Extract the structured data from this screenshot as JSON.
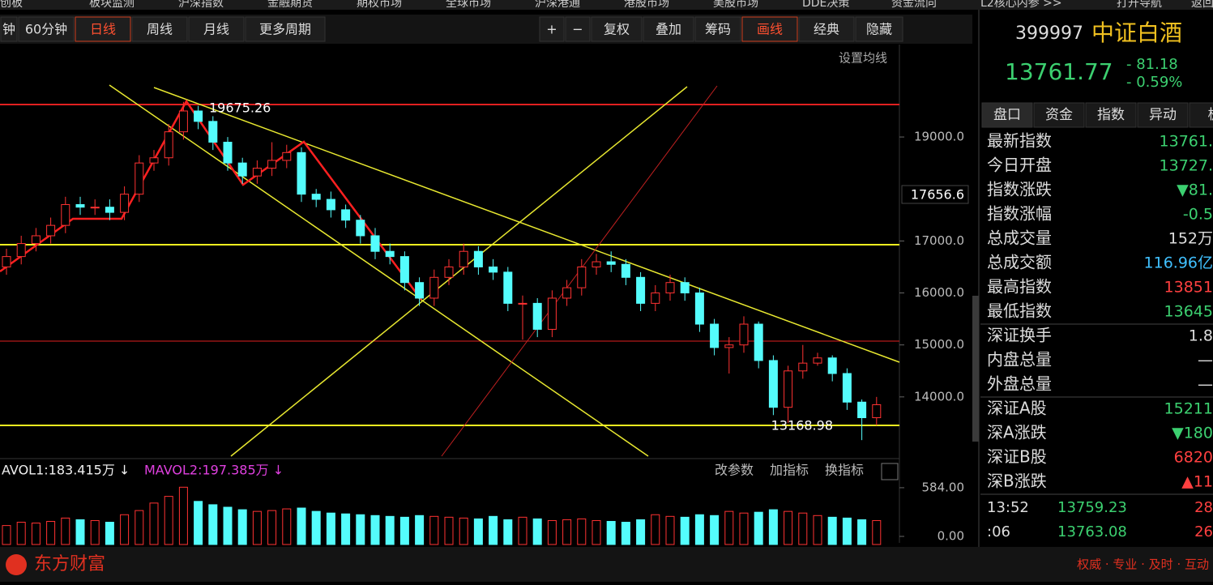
{
  "nav": {
    "items": [
      "创板",
      "板块监测",
      "沪深指数",
      "金融期货",
      "期权市场",
      "全球市场",
      "沪深港通",
      "港股市场",
      "美股市场",
      "DDE决策",
      "资金流向",
      "L2核心内参 >>"
    ],
    "right": [
      "打开导航",
      "返回"
    ]
  },
  "toolbar": {
    "periods": [
      "钟",
      "60分钟",
      "日线",
      "周线",
      "月线",
      "更多周期"
    ],
    "tools": [
      "+",
      "−",
      "复权",
      "叠加",
      "筹码",
      "画线",
      "经典",
      "隐藏"
    ]
  },
  "chart_data": {
    "type": "candlestick",
    "ma_setting": "设置均线",
    "cursor_label": "17656.6",
    "high_label": "19675.26",
    "low_label": "13168.98",
    "up_color": "#ff3232",
    "down_color": "#54fcfc",
    "ylim": [
      12860,
      20700
    ],
    "yticks": [
      {
        "value": 14000,
        "label": "14000.0"
      },
      {
        "value": 15000,
        "label": "15000.0"
      },
      {
        "value": 16000,
        "label": "16000.0"
      },
      {
        "value": 17000,
        "label": "17000.0"
      },
      {
        "value": 19000,
        "label": "19000.0"
      }
    ],
    "open": [
      16500,
      16700,
      16950,
      17100,
      17300,
      17700,
      17650,
      17650,
      17550,
      17900,
      18500,
      18600,
      19100,
      19500,
      19300,
      18900,
      18500,
      18250,
      18400,
      18550,
      18700,
      17900,
      17800,
      17600,
      17400,
      17100,
      16800,
      16700,
      16200,
      15900,
      16300,
      16500,
      16800,
      16500,
      16400,
      15800,
      15800,
      15300,
      15900,
      16100,
      16500,
      16600,
      16550,
      16300,
      15800,
      16000,
      16200,
      16000,
      15400,
      14950,
      15000,
      15400,
      14700,
      13800,
      14500,
      14650,
      14750,
      14450,
      13900,
      13600
    ],
    "high": [
      16850,
      17100,
      17250,
      17450,
      17850,
      17850,
      17800,
      17800,
      18050,
      18650,
      18750,
      19250,
      19675.26,
      19600,
      19400,
      19000,
      18600,
      18550,
      18900,
      18850,
      18800,
      18000,
      17950,
      17700,
      17500,
      17250,
      16950,
      16800,
      16300,
      16450,
      16650,
      16950,
      16900,
      16650,
      16500,
      15950,
      15900,
      16050,
      16250,
      16650,
      16750,
      16800,
      16650,
      16400,
      16150,
      16350,
      16300,
      16100,
      15500,
      15150,
      15550,
      15450,
      14800,
      14600,
      15000,
      14850,
      14800,
      14550,
      13950,
      14000
    ],
    "low": [
      16350,
      16550,
      16800,
      16950,
      17150,
      17500,
      17500,
      17400,
      17400,
      17750,
      18350,
      18450,
      18950,
      19150,
      18750,
      18350,
      18100,
      18100,
      18250,
      18400,
      17750,
      17650,
      17450,
      17250,
      16950,
      16650,
      16550,
      16050,
      15750,
      15750,
      16150,
      16350,
      16350,
      16250,
      15650,
      15100,
      15150,
      15150,
      15750,
      15950,
      16350,
      16400,
      16150,
      15650,
      15650,
      15850,
      15850,
      15250,
      14800,
      14450,
      14850,
      14550,
      13650,
      13500,
      14350,
      14600,
      14300,
      13750,
      13168.98,
      13450
    ],
    "close": [
      16700,
      16950,
      17100,
      17300,
      17700,
      17650,
      17650,
      17550,
      17900,
      18500,
      18600,
      19100,
      19500,
      19300,
      18900,
      18500,
      18250,
      18400,
      18550,
      18700,
      17900,
      17800,
      17600,
      17400,
      17100,
      16800,
      16700,
      16200,
      15900,
      16300,
      16500,
      16800,
      16500,
      16400,
      15800,
      15800,
      15300,
      15900,
      16100,
      16500,
      16600,
      16550,
      16300,
      15800,
      16000,
      16200,
      16000,
      15400,
      14950,
      15000,
      15400,
      14700,
      13800,
      14500,
      14650,
      14750,
      14450,
      13900,
      13600,
      13850
    ],
    "volume": {
      "mavol1": "AVOL1:183.415万 ↓",
      "mavol2": "MAVOL2:197.385万 ↓",
      "buttons": [
        "改参数",
        "加指标",
        "换指标"
      ],
      "ylim": [
        0,
        700
      ],
      "yticks": [
        {
          "value": 0,
          "label": "0.00"
        },
        {
          "value": 584,
          "label": "584.00"
        }
      ],
      "values": [
        130,
        170,
        160,
        180,
        220,
        200,
        190,
        170,
        260,
        310,
        400,
        480,
        590,
        420,
        380,
        350,
        320,
        300,
        310,
        330,
        340,
        300,
        280,
        270,
        260,
        250,
        240,
        230,
        250,
        240,
        230,
        220,
        210,
        240,
        200,
        230,
        210,
        190,
        200,
        210,
        190,
        180,
        170,
        200,
        260,
        240,
        230,
        260,
        250,
        300,
        280,
        290,
        320,
        300,
        280,
        250,
        230,
        220,
        200,
        190
      ]
    }
  },
  "panel": {
    "code": "399997",
    "name": "中证白酒",
    "price": "13761.77",
    "change": "- 81.18",
    "pct": "- 0.59%",
    "tabs": [
      "盘口",
      "资金",
      "指数",
      "异动",
      "板"
    ],
    "rows": [
      [
        "最新指数",
        "13761."
      ],
      [
        "今日开盘",
        "13727."
      ],
      [
        "指数涨跌",
        "▼81."
      ],
      [
        "指数涨幅",
        "-0.5"
      ],
      [
        "总成交量",
        "152万"
      ],
      [
        "总成交额",
        "116.96亿"
      ],
      [
        "最高指数",
        "13851"
      ],
      [
        "最低指数",
        "13645"
      ],
      [
        "深证换手",
        "1.8"
      ],
      [
        "内盘总量",
        "—"
      ],
      [
        "外盘总量",
        "—"
      ],
      [
        "深证A股",
        "15211"
      ],
      [
        "深A涨跌",
        "▼180"
      ],
      [
        "深证B股",
        "6820"
      ],
      [
        "深B涨跌",
        "▲11"
      ]
    ],
    "ticks": [
      [
        "13:52",
        "13759.23",
        "28"
      ],
      [
        ":06",
        "13763.08",
        "26"
      ]
    ]
  },
  "footer": {
    "brand": "东方财富",
    "slogan": "权威 · 专业 · 及时 · 互动"
  }
}
